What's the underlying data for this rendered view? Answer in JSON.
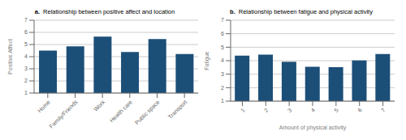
{
  "chart_data": [
    {
      "type": "bar",
      "title": "Relationship between positive affect and location",
      "annotations": [
        "a."
      ],
      "ylabel": "Positive Affect",
      "categories": [
        "Home",
        "Family/Friends",
        "Work",
        "Health care",
        "Public space",
        "Transport"
      ],
      "values": [
        4.5,
        4.85,
        5.65,
        4.38,
        5.45,
        4.22
      ],
      "color": "#1c4f78",
      "ylim": [
        1,
        7
      ],
      "yticks": [
        1,
        2,
        3,
        4,
        5,
        6,
        7
      ],
      "grid": true
    },
    {
      "type": "bar",
      "title": "Relationship between fatigue and physical activity",
      "annotations": [
        "b."
      ],
      "ylabel": "Fatigue",
      "xlabel": "Amount of physical activity",
      "categories": [
        "1",
        "2",
        "3",
        "4",
        "5",
        "6",
        "7"
      ],
      "values": [
        4.38,
        4.45,
        3.92,
        3.55,
        3.52,
        4.02,
        4.5
      ],
      "color": "#1c4f78",
      "ylim": [
        1,
        7
      ],
      "yticks": [
        1,
        2,
        3,
        4,
        5,
        6,
        7
      ],
      "grid": true
    }
  ]
}
